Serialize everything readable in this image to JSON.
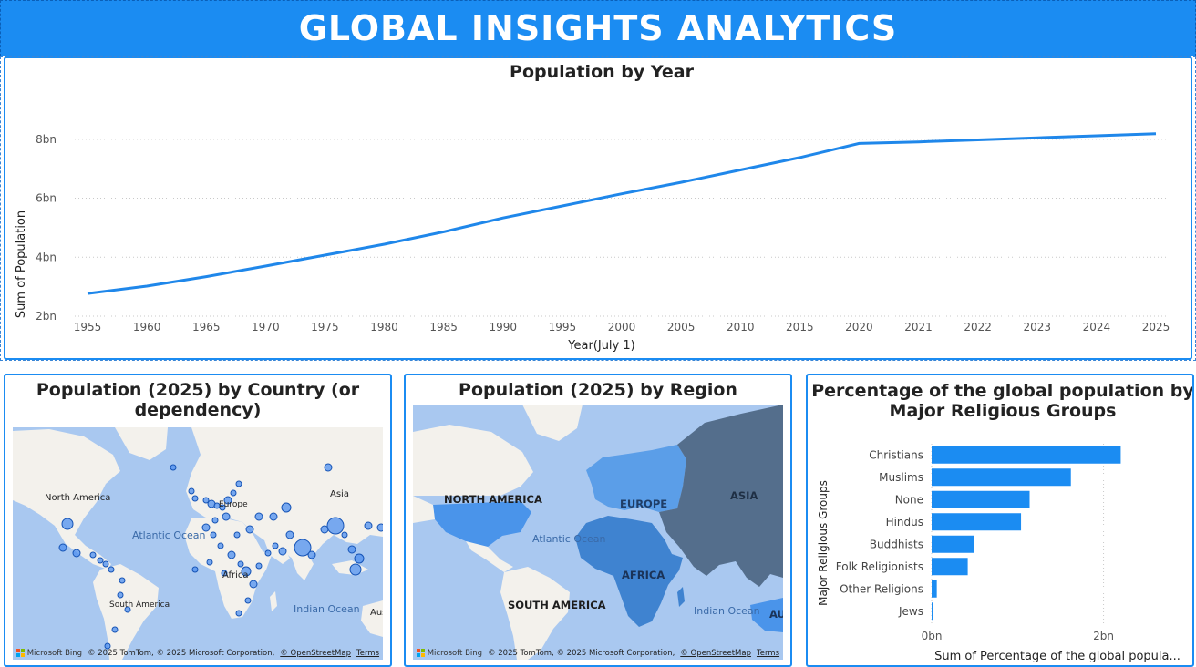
{
  "header": {
    "title": "GLOBAL INSIGHTS ANALYTICS"
  },
  "colors": {
    "accent": "#1b8cf2",
    "line": "#1f87ea",
    "bar": "#1b8cf2",
    "ocean": "#a9c8f0",
    "land": "#f3f1ec",
    "asia": "#546e8c",
    "europe": "#5b9ee8",
    "na": "#4a94ea",
    "africa": "#3f83d0"
  },
  "chart_data": [
    {
      "type": "line",
      "title": "Population by Year",
      "xlabel": "Year(July 1)",
      "ylabel": "Sum of Population",
      "categories": [
        "1955",
        "1960",
        "1965",
        "1970",
        "1975",
        "1980",
        "1985",
        "1990",
        "1995",
        "2000",
        "2005",
        "2010",
        "2015",
        "2020",
        "2021",
        "2022",
        "2023",
        "2024",
        "2025"
      ],
      "series": [
        {
          "values": [
            2.77,
            3.02,
            3.34,
            3.7,
            4.07,
            4.44,
            4.86,
            5.33,
            5.74,
            6.15,
            6.54,
            6.96,
            7.38,
            7.86,
            7.91,
            7.98,
            8.05,
            8.12,
            8.19
          ]
        }
      ],
      "yticks": [
        "2bn",
        "4bn",
        "6bn",
        "8bn"
      ],
      "ytick_values": [
        2,
        4,
        6,
        8
      ],
      "ylim": [
        2,
        9.2
      ],
      "grid": true
    },
    {
      "type": "bar",
      "title": "Percentage of the global population by Major Religious Groups",
      "xlabel": "Sum of Percentage of the global popula...",
      "ylabel": "Major Religious Groups",
      "categories": [
        "Christians",
        "Muslims",
        "None",
        "Hindus",
        "Buddhists",
        "Folk Religionists",
        "Other Religions",
        "Jews"
      ],
      "values": [
        2.2,
        1.62,
        1.14,
        1.04,
        0.49,
        0.42,
        0.06,
        0.015
      ],
      "xticks": [
        "0bn",
        "2bn"
      ],
      "xtick_values": [
        0,
        2
      ],
      "xlim": [
        0,
        2.8
      ],
      "grid": true
    }
  ],
  "map_country": {
    "title": "Population (2025) by Country (or dependency)",
    "labels": {
      "north_america": "North America",
      "europe": "Europe",
      "asia": "Asia",
      "atlantic": "Atlantic Ocean",
      "africa": "Africa",
      "south_america": "South America",
      "indian": "Indian Ocean",
      "aus": "Aus"
    }
  },
  "map_region": {
    "title": "Population (2025) by Region",
    "labels": {
      "north_america": "NORTH AMERICA",
      "europe": "EUROPE",
      "asia": "ASIA",
      "atlantic": "Atlantic Ocean",
      "africa": "AFRICA",
      "south_america": "SOUTH AMERICA",
      "indian": "Indian Ocean",
      "aus": "AU"
    }
  },
  "attribution": {
    "bing": "Microsoft Bing",
    "text": "© 2025 TomTom, © 2025 Microsoft Corporation,",
    "osm": "© OpenStreetMap",
    "terms": "Terms"
  }
}
